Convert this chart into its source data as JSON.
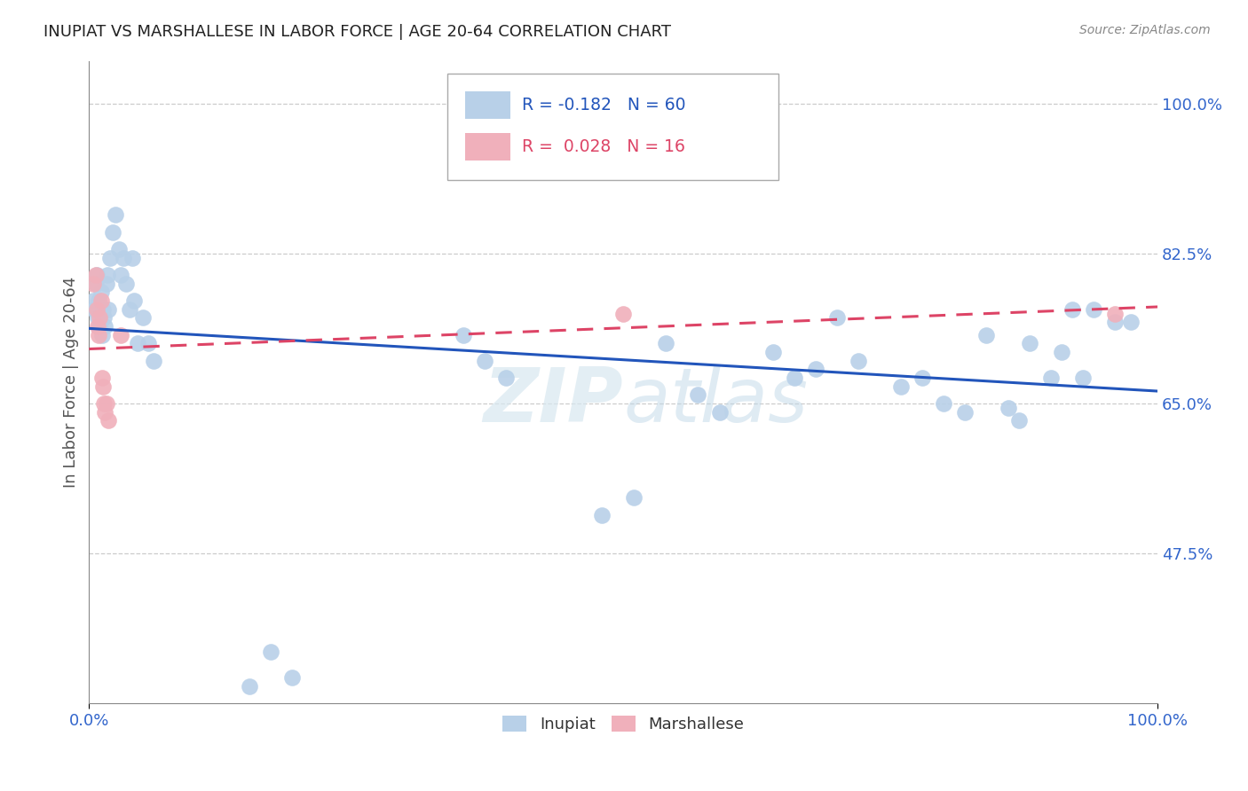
{
  "title": "INUPIAT VS MARSHALLESE IN LABOR FORCE | AGE 20-64 CORRELATION CHART",
  "source": "Source: ZipAtlas.com",
  "ylabel": "In Labor Force | Age 20-64",
  "xlim": [
    0.0,
    1.0
  ],
  "ylim": [
    0.3,
    1.05
  ],
  "yticks": [
    0.475,
    0.65,
    0.825,
    1.0
  ],
  "ytick_labels": [
    "47.5%",
    "65.0%",
    "82.5%",
    "100.0%"
  ],
  "watermark": "ZIPatlas",
  "inupiat_color": "#b8d0e8",
  "marshallese_color": "#f0b0bb",
  "trend_inupiat_color": "#2255bb",
  "trend_marshallese_color": "#dd4466",
  "inupiat_x": [
    0.004,
    0.005,
    0.006,
    0.007,
    0.008,
    0.009,
    0.01,
    0.011,
    0.012,
    0.013,
    0.014,
    0.015,
    0.016,
    0.017,
    0.018,
    0.02,
    0.022,
    0.025,
    0.028,
    0.03,
    0.032,
    0.035,
    0.038,
    0.04,
    0.042,
    0.045,
    0.05,
    0.055,
    0.06,
    0.15,
    0.17,
    0.19,
    0.35,
    0.37,
    0.39,
    0.48,
    0.51,
    0.54,
    0.57,
    0.59,
    0.64,
    0.66,
    0.68,
    0.7,
    0.72,
    0.76,
    0.78,
    0.8,
    0.82,
    0.84,
    0.86,
    0.87,
    0.88,
    0.9,
    0.91,
    0.92,
    0.93,
    0.94,
    0.96,
    0.975
  ],
  "inupiat_y": [
    0.77,
    0.76,
    0.79,
    0.8,
    0.75,
    0.77,
    0.74,
    0.78,
    0.73,
    0.76,
    0.75,
    0.74,
    0.79,
    0.8,
    0.76,
    0.82,
    0.85,
    0.87,
    0.83,
    0.8,
    0.82,
    0.79,
    0.76,
    0.82,
    0.77,
    0.72,
    0.75,
    0.72,
    0.7,
    0.32,
    0.36,
    0.33,
    0.73,
    0.7,
    0.68,
    0.52,
    0.54,
    0.72,
    0.66,
    0.64,
    0.71,
    0.68,
    0.69,
    0.75,
    0.7,
    0.67,
    0.68,
    0.65,
    0.64,
    0.73,
    0.645,
    0.63,
    0.72,
    0.68,
    0.71,
    0.76,
    0.68,
    0.76,
    0.745,
    0.745
  ],
  "marshallese_x": [
    0.004,
    0.006,
    0.007,
    0.008,
    0.009,
    0.01,
    0.011,
    0.012,
    0.013,
    0.014,
    0.015,
    0.016,
    0.018,
    0.03,
    0.5,
    0.96
  ],
  "marshallese_y": [
    0.79,
    0.8,
    0.76,
    0.74,
    0.73,
    0.75,
    0.77,
    0.68,
    0.67,
    0.65,
    0.64,
    0.65,
    0.63,
    0.73,
    0.755,
    0.755
  ],
  "background_color": "#ffffff",
  "grid_color": "#cccccc"
}
